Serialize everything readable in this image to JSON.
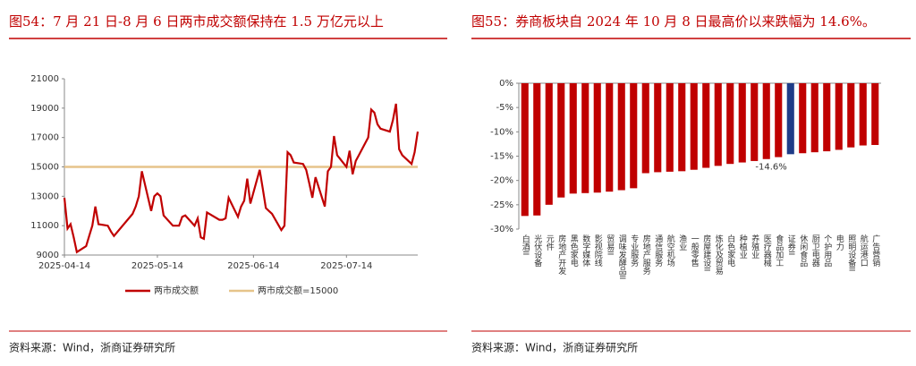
{
  "chart_data": [
    {
      "type": "line",
      "title": "图54：7 月 21 日-8 月 6 日两市成交额保持在 1.5 万亿元以上",
      "source": "资料来源：Wind，浙商证券研究所",
      "x": [
        "2025-04-14",
        "2025-04-15",
        "2025-04-16",
        "2025-04-17",
        "2025-04-18",
        "2025-04-21",
        "2025-04-22",
        "2025-04-23",
        "2025-04-24",
        "2025-04-25",
        "2025-04-28",
        "2025-04-29",
        "2025-04-30",
        "2025-05-06",
        "2025-05-07",
        "2025-05-08",
        "2025-05-09",
        "2025-05-12",
        "2025-05-13",
        "2025-05-14",
        "2025-05-15",
        "2025-05-16",
        "2025-05-19",
        "2025-05-20",
        "2025-05-21",
        "2025-05-22",
        "2025-05-23",
        "2025-05-26",
        "2025-05-27",
        "2025-05-28",
        "2025-05-29",
        "2025-05-30",
        "2025-06-03",
        "2025-06-04",
        "2025-06-05",
        "2025-06-06",
        "2025-06-09",
        "2025-06-10",
        "2025-06-11",
        "2025-06-12",
        "2025-06-13",
        "2025-06-16",
        "2025-06-17",
        "2025-06-18",
        "2025-06-19",
        "2025-06-20",
        "2025-06-23",
        "2025-06-24",
        "2025-06-25",
        "2025-06-26",
        "2025-06-27",
        "2025-06-30",
        "2025-07-01",
        "2025-07-02",
        "2025-07-03",
        "2025-07-04",
        "2025-07-07",
        "2025-07-08",
        "2025-07-09",
        "2025-07-10",
        "2025-07-11",
        "2025-07-14",
        "2025-07-15",
        "2025-07-16",
        "2025-07-17",
        "2025-07-18",
        "2025-07-21",
        "2025-07-22",
        "2025-07-23",
        "2025-07-24",
        "2025-07-25",
        "2025-07-28",
        "2025-07-29",
        "2025-07-30",
        "2025-07-31",
        "2025-08-01",
        "2025-08-04",
        "2025-08-05",
        "2025-08-06"
      ],
      "series": [
        {
          "name": "两市成交额",
          "color": "#c00000",
          "values": [
            12900,
            10800,
            11100,
            10200,
            9200,
            9600,
            10300,
            11000,
            12300,
            11100,
            11000,
            10600,
            10300,
            11800,
            12300,
            13000,
            14700,
            12000,
            13000,
            13200,
            13000,
            11700,
            11000,
            11000,
            11000,
            11600,
            11700,
            11000,
            11500,
            10200,
            10100,
            11900,
            11400,
            11400,
            11500,
            12900,
            11600,
            12300,
            12700,
            14200,
            12500,
            14800,
            13500,
            12200,
            12000,
            11800,
            10700,
            11000,
            16000,
            15800,
            15300,
            15200,
            14800,
            13900,
            12900,
            14300,
            12300,
            14700,
            15000,
            17100,
            15800,
            15000,
            16100,
            14500,
            15400,
            15800,
            17000,
            18900,
            18700,
            17900,
            17600,
            17400,
            18200,
            19300,
            16200,
            15800,
            15200,
            16000,
            17400
          ]
        }
      ],
      "reference_line": {
        "name": "两市成交额=15000",
        "value": 15000,
        "color": "#e6c48a"
      },
      "xlim": [
        "2025-04-14",
        "2025-08-06"
      ],
      "xticks": [
        "2025-04-14",
        "2025-05-14",
        "2025-06-14",
        "2025-07-14"
      ],
      "ylim": [
        9000,
        21000
      ],
      "yticks": [
        9000,
        11000,
        13000,
        15000,
        17000,
        19000,
        21000
      ],
      "grid": false
    },
    {
      "type": "bar",
      "title": "图55：券商板块自 2024 年 10 月 8 日最高价以来跌幅为 14.6%。",
      "source": "资料来源：Wind，浙商证券研究所",
      "categories": [
        "白酒II",
        "光伏设备",
        "元件",
        "房地产开发",
        "黑色家电",
        "数字媒体",
        "影视院线",
        "贸易II",
        "调味发酵品II",
        "专业服务",
        "房地产服务",
        "通信服务",
        "航空机场",
        "渔业",
        "一般零售",
        "房屋建设II",
        "炼化及贸易",
        "白色家电",
        "种植业",
        "养殖业",
        "医疗器械",
        "食品加工",
        "证券II",
        "休闲食品",
        "厨卫电器",
        "个护用品",
        "电力",
        "照明设备II",
        "航运港口",
        "广告营销"
      ],
      "values": [
        -27.3,
        -27.2,
        -25.0,
        -23.5,
        -22.7,
        -22.6,
        -22.5,
        -22.3,
        -22.0,
        -21.6,
        -18.5,
        -18.3,
        -18.2,
        -18.1,
        -17.8,
        -17.4,
        -17.0,
        -16.6,
        -16.3,
        -16.0,
        -15.6,
        -15.2,
        -14.6,
        -14.4,
        -14.2,
        -14.0,
        -13.7,
        -13.2,
        -12.8,
        -12.7
      ],
      "value_labels": [
        null,
        null,
        null,
        null,
        null,
        null,
        null,
        null,
        null,
        null,
        null,
        null,
        null,
        null,
        null,
        null,
        null,
        null,
        null,
        null,
        null,
        null,
        "-14.6%",
        null,
        null,
        null,
        null,
        null,
        null,
        null
      ],
      "colors": [
        "#c00000",
        "#c00000",
        "#c00000",
        "#c00000",
        "#c00000",
        "#c00000",
        "#c00000",
        "#c00000",
        "#c00000",
        "#c00000",
        "#c00000",
        "#c00000",
        "#c00000",
        "#c00000",
        "#c00000",
        "#c00000",
        "#c00000",
        "#c00000",
        "#c00000",
        "#c00000",
        "#c00000",
        "#c00000",
        "#1f3c88",
        "#c00000",
        "#c00000",
        "#c00000",
        "#c00000",
        "#c00000",
        "#c00000",
        "#c00000"
      ],
      "ylim": [
        -30,
        0
      ],
      "yticks": [
        {
          "value": 0,
          "label": "0%"
        },
        {
          "value": -5,
          "label": "-5%"
        },
        {
          "value": -10,
          "label": "-10%"
        },
        {
          "value": -15,
          "label": "-15%"
        },
        {
          "value": -20,
          "label": "-20%"
        },
        {
          "value": -25,
          "label": "-25%"
        },
        {
          "value": -30,
          "label": "-30%"
        }
      ],
      "grid": false
    }
  ]
}
